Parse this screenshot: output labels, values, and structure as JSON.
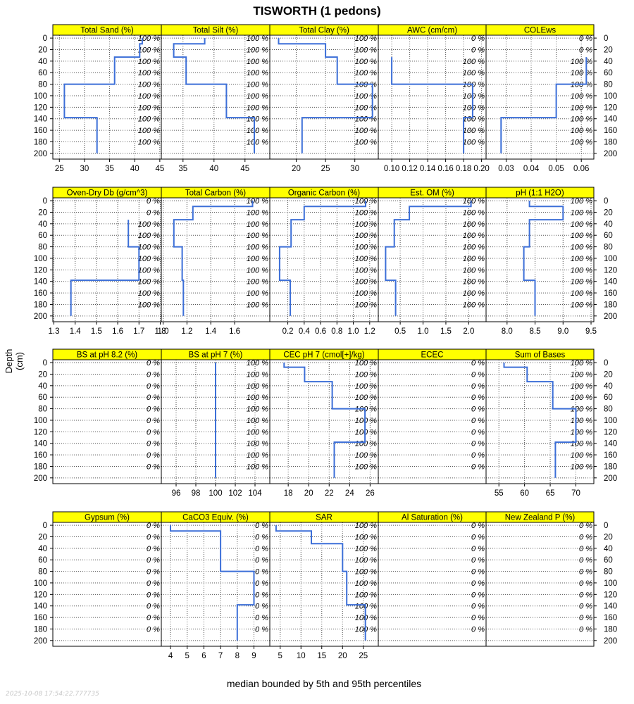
{
  "title": "TISWORTH (1 pedons)",
  "ylabel": "Depth (cm)",
  "xlabel": "median bounded by 5th and 95th percentiles",
  "timestamp": "2025-10-08 17:54:22.777735",
  "colors": {
    "strip": "#ffff00",
    "line": "#3c6fd8",
    "grid": "#555555"
  },
  "chart_data": {
    "type": "line",
    "ylim": [
      210,
      -5
    ],
    "y_ticks": [
      0,
      20,
      40,
      60,
      80,
      100,
      120,
      140,
      160,
      180,
      200
    ],
    "y_ticks_left_panel": [
      0,
      20,
      40,
      60,
      80,
      100,
      120,
      140,
      160,
      180,
      200
    ],
    "pct_depths": [
      0,
      20,
      40,
      60,
      80,
      100,
      120,
      140,
      160,
      180
    ],
    "panels": [
      {
        "name": "Total Sand (%)",
        "xlim": [
          23.7,
          45.3
        ],
        "ticks": [
          "25",
          "30",
          "35",
          "40",
          "45"
        ],
        "tick_values": [
          25,
          30,
          35,
          40,
          45
        ],
        "pct": [
          "100 %",
          "100 %",
          "100 %",
          "100 %",
          "100 %",
          "100 %",
          "100 %",
          "100 %",
          "100 %",
          "100 %"
        ],
        "profile": [
          [
            41.5,
            0
          ],
          [
            41.5,
            10
          ],
          [
            41,
            10
          ],
          [
            41,
            33
          ],
          [
            36,
            33
          ],
          [
            36,
            80
          ],
          [
            26,
            80
          ],
          [
            26,
            138
          ],
          [
            32.5,
            138
          ],
          [
            32.5,
            200
          ]
        ]
      },
      {
        "name": "Total Silt (%)",
        "xlim": [
          31.5,
          49
        ],
        "ticks": [
          "35",
          "40",
          "45"
        ],
        "tick_values": [
          35,
          40,
          45
        ],
        "pct": [
          "100 %",
          "100 %",
          "100 %",
          "100 %",
          "100 %",
          "100 %",
          "100 %",
          "100 %",
          "100 %",
          "100 %"
        ],
        "profile": [
          [
            38.5,
            0
          ],
          [
            38.5,
            10
          ],
          [
            33.5,
            10
          ],
          [
            33.5,
            33
          ],
          [
            35.5,
            33
          ],
          [
            35.5,
            80
          ],
          [
            42,
            80
          ],
          [
            42,
            138
          ],
          [
            46.5,
            138
          ],
          [
            46.5,
            200
          ]
        ]
      },
      {
        "name": "Total Clay (%)",
        "xlim": [
          15.5,
          34
        ],
        "ticks": [
          "20",
          "25",
          "30"
        ],
        "tick_values": [
          20,
          25,
          30
        ],
        "pct": [
          "100 %",
          "100 %",
          "100 %",
          "100 %",
          "100 %",
          "100 %",
          "100 %",
          "100 %",
          "100 %",
          "100 %"
        ],
        "profile": [
          [
            17,
            0
          ],
          [
            17,
            10
          ],
          [
            25,
            10
          ],
          [
            25,
            33
          ],
          [
            27,
            33
          ],
          [
            27,
            80
          ],
          [
            33,
            80
          ],
          [
            33,
            138
          ],
          [
            21,
            138
          ],
          [
            21,
            200
          ]
        ]
      },
      {
        "name": "AWC (cm/cm)",
        "xlim": [
          0.085,
          0.205
        ],
        "ticks": [
          "0.10",
          "0.12",
          "0.14",
          "0.16",
          "0.18",
          "0.20"
        ],
        "tick_values": [
          0.1,
          0.12,
          0.14,
          0.16,
          0.18,
          0.2
        ],
        "pct": [
          "0 %",
          "0 %",
          "100 %",
          "100 %",
          "100 %",
          "100 %",
          "100 %",
          "100 %",
          "100 %",
          "100 %"
        ],
        "profile": [
          [
            0.1,
            33
          ],
          [
            0.1,
            80
          ],
          [
            0.19,
            80
          ],
          [
            0.19,
            138
          ],
          [
            0.18,
            138
          ],
          [
            0.18,
            200
          ]
        ]
      },
      {
        "name": "COLEws",
        "xlim": [
          0.022,
          0.065
        ],
        "ticks": [
          "0.03",
          "0.04",
          "0.05",
          "0.06"
        ],
        "tick_values": [
          0.03,
          0.04,
          0.05,
          0.06
        ],
        "pct": [
          "0 %",
          "0 %",
          "100 %",
          "100 %",
          "100 %",
          "100 %",
          "100 %",
          "100 %",
          "100 %",
          "100 %"
        ],
        "profile": [
          [
            0.062,
            33
          ],
          [
            0.062,
            80
          ],
          [
            0.05,
            80
          ],
          [
            0.05,
            138
          ],
          [
            0.028,
            138
          ],
          [
            0.028,
            200
          ]
        ]
      },
      {
        "name": "Oven-Dry Db (g/cm^3)",
        "xlim": [
          1.295,
          1.805
        ],
        "ticks": [
          "1.3",
          "1.4",
          "1.5",
          "1.6",
          "1.7",
          "1.8"
        ],
        "tick_values": [
          1.3,
          1.4,
          1.5,
          1.6,
          1.7,
          1.8
        ],
        "pct": [
          "0 %",
          "0 %",
          "100 %",
          "100 %",
          "100 %",
          "100 %",
          "100 %",
          "100 %",
          "100 %",
          "100 %"
        ],
        "profile": [
          [
            1.65,
            33
          ],
          [
            1.65,
            80
          ],
          [
            1.7,
            80
          ],
          [
            1.7,
            138
          ],
          [
            1.38,
            138
          ],
          [
            1.38,
            200
          ]
        ]
      },
      {
        "name": "Total Carbon (%)",
        "xlim": [
          0.985,
          1.895
        ],
        "ticks": [
          "1.0",
          "1.2",
          "1.4",
          "1.6"
        ],
        "tick_values": [
          1.0,
          1.2,
          1.4,
          1.6
        ],
        "pct": [
          "100 %",
          "100 %",
          "100 %",
          "100 %",
          "100 %",
          "100 %",
          "100 %",
          "100 %",
          "100 %",
          "100 %"
        ],
        "profile": [
          [
            1.75,
            0
          ],
          [
            1.75,
            10
          ],
          [
            1.25,
            10
          ],
          [
            1.25,
            33
          ],
          [
            1.09,
            33
          ],
          [
            1.09,
            80
          ],
          [
            1.16,
            80
          ],
          [
            1.16,
            138
          ],
          [
            1.17,
            138
          ],
          [
            1.17,
            200
          ]
        ]
      },
      {
        "name": "Organic Carbon (%)",
        "xlim": [
          -0.02,
          1.305
        ],
        "ticks": [
          "0.2",
          "0.4",
          "0.6",
          "0.8",
          "1.0",
          "1.2"
        ],
        "tick_values": [
          0.2,
          0.4,
          0.6,
          0.8,
          1.0,
          1.2
        ],
        "pct": [
          "100 %",
          "100 %",
          "100 %",
          "100 %",
          "100 %",
          "100 %",
          "100 %",
          "100 %",
          "100 %",
          "100 %"
        ],
        "profile": [
          [
            1.15,
            0
          ],
          [
            1.15,
            10
          ],
          [
            0.4,
            10
          ],
          [
            0.4,
            33
          ],
          [
            0.24,
            33
          ],
          [
            0.24,
            80
          ],
          [
            0.1,
            80
          ],
          [
            0.1,
            138
          ],
          [
            0.23,
            138
          ],
          [
            0.23,
            200
          ]
        ]
      },
      {
        "name": "Est. OM (%)",
        "xlim": [
          0.02,
          2.38
        ],
        "ticks": [
          "0.5",
          "1.0",
          "1.5",
          "2.0"
        ],
        "tick_values": [
          0.5,
          1.0,
          1.5,
          2.0
        ],
        "pct": [
          "100 %",
          "100 %",
          "100 %",
          "100 %",
          "100 %",
          "100 %",
          "100 %",
          "100 %",
          "100 %",
          "100 %"
        ],
        "profile": [
          [
            2.05,
            0
          ],
          [
            2.05,
            10
          ],
          [
            0.7,
            10
          ],
          [
            0.7,
            33
          ],
          [
            0.37,
            33
          ],
          [
            0.37,
            80
          ],
          [
            0.18,
            80
          ],
          [
            0.18,
            138
          ],
          [
            0.4,
            138
          ],
          [
            0.4,
            200
          ]
        ]
      },
      {
        "name": "pH (1:1 H2O)",
        "xlim": [
          7.625,
          9.55
        ],
        "ticks": [
          "8.0",
          "8.5",
          "9.0",
          "9.5"
        ],
        "tick_values": [
          8.0,
          8.5,
          9.0,
          9.5
        ],
        "pct": [
          "100 %",
          "100 %",
          "100 %",
          "100 %",
          "100 %",
          "100 %",
          "100 %",
          "100 %",
          "100 %",
          "100 %"
        ],
        "profile": [
          [
            8.4,
            0
          ],
          [
            8.4,
            10
          ],
          [
            9.0,
            10
          ],
          [
            9.0,
            33
          ],
          [
            8.4,
            33
          ],
          [
            8.4,
            80
          ],
          [
            8.3,
            80
          ],
          [
            8.3,
            138
          ],
          [
            8.5,
            138
          ],
          [
            8.5,
            200
          ]
        ]
      },
      {
        "name": "BS at pH 8.2 (%)",
        "xlim": [
          0,
          1
        ],
        "ticks": [],
        "tick_values": [],
        "pct": [
          "0 %",
          "0 %",
          "0 %",
          "0 %",
          "0 %",
          "0 %",
          "0 %",
          "0 %",
          "0 %",
          "0 %"
        ],
        "profile": []
      },
      {
        "name": "BS at pH 7 (%)",
        "xlim": [
          94.5,
          105.5
        ],
        "ticks": [
          "96",
          "98",
          "100",
          "102",
          "104"
        ],
        "tick_values": [
          96,
          98,
          100,
          102,
          104
        ],
        "pct": [
          "100 %",
          "100 %",
          "100 %",
          "100 %",
          "100 %",
          "100 %",
          "100 %",
          "100 %",
          "100 %",
          "100 %"
        ],
        "profile": [
          [
            100,
            0
          ],
          [
            100,
            200
          ]
        ]
      },
      {
        "name": "CEC pH 7 (cmol[+]/kg)",
        "xlim": [
          16.2,
          26.8
        ],
        "ticks": [
          "18",
          "20",
          "22",
          "24",
          "26"
        ],
        "tick_values": [
          18,
          20,
          22,
          24,
          26
        ],
        "pct": [
          "100 %",
          "100 %",
          "100 %",
          "100 %",
          "100 %",
          "100 %",
          "100 %",
          "100 %",
          "100 %",
          "100 %"
        ],
        "profile": [
          [
            17.6,
            0
          ],
          [
            17.6,
            8
          ],
          [
            19.6,
            8
          ],
          [
            19.6,
            33
          ],
          [
            22.3,
            33
          ],
          [
            22.3,
            80
          ],
          [
            25.5,
            80
          ],
          [
            25.5,
            138
          ],
          [
            22.5,
            138
          ],
          [
            22.5,
            200
          ]
        ]
      },
      {
        "name": "ECEC",
        "xlim": [
          0,
          1
        ],
        "ticks": [],
        "tick_values": [],
        "pct": [
          "0 %",
          "0 %",
          "0 %",
          "0 %",
          "0 %",
          "0 %",
          "0 %",
          "0 %",
          "0 %",
          "0 %"
        ],
        "profile": []
      },
      {
        "name": "Sum of Bases",
        "xlim": [
          52.5,
          73.5
        ],
        "ticks": [
          "55",
          "60",
          "65",
          "70"
        ],
        "tick_values": [
          55,
          60,
          65,
          70
        ],
        "pct": [
          "100 %",
          "100 %",
          "100 %",
          "100 %",
          "100 %",
          "100 %",
          "100 %",
          "100 %",
          "100 %",
          "100 %"
        ],
        "profile": [
          [
            56,
            0
          ],
          [
            56,
            8
          ],
          [
            60.5,
            8
          ],
          [
            60.5,
            33
          ],
          [
            65.5,
            33
          ],
          [
            65.5,
            80
          ],
          [
            70,
            80
          ],
          [
            70,
            138
          ],
          [
            66,
            138
          ],
          [
            66,
            200
          ]
        ]
      },
      {
        "name": "Gypsum (%)",
        "xlim": [
          0,
          1
        ],
        "ticks": [],
        "tick_values": [],
        "pct": [
          "0 %",
          "0 %",
          "0 %",
          "0 %",
          "0 %",
          "0 %",
          "0 %",
          "0 %",
          "0 %",
          "0 %"
        ],
        "profile": []
      },
      {
        "name": "CaCO3 Equiv. (%)",
        "xlim": [
          3.45,
          9.95
        ],
        "ticks": [
          "4",
          "5",
          "6",
          "7",
          "8",
          "9"
        ],
        "tick_values": [
          4,
          5,
          6,
          7,
          8,
          9
        ],
        "pct": [
          "0 %",
          "0 %",
          "0 %",
          "0 %",
          "0 %",
          "0 %",
          "0 %",
          "0 %",
          "0 %",
          "0 %"
        ],
        "profile": [
          [
            4,
            0
          ],
          [
            4,
            10
          ],
          [
            7,
            10
          ],
          [
            7,
            80
          ],
          [
            9,
            80
          ],
          [
            9,
            138
          ],
          [
            8,
            138
          ],
          [
            8,
            200
          ]
        ]
      },
      {
        "name": "SAR",
        "xlim": [
          2.5,
          28.6
        ],
        "ticks": [
          "5",
          "10",
          "15",
          "20",
          "25"
        ],
        "tick_values": [
          5,
          10,
          15,
          20,
          25
        ],
        "pct": [
          "100 %",
          "100 %",
          "100 %",
          "100 %",
          "100 %",
          "100 %",
          "100 %",
          "100 %",
          "100 %",
          "100 %"
        ],
        "profile": [
          [
            4,
            0
          ],
          [
            4,
            10
          ],
          [
            12.5,
            10
          ],
          [
            12.5,
            32
          ],
          [
            20,
            32
          ],
          [
            20,
            80
          ],
          [
            21,
            80
          ],
          [
            21,
            138
          ],
          [
            25.5,
            138
          ],
          [
            25.5,
            200
          ]
        ]
      },
      {
        "name": "Al Saturation (%)",
        "xlim": [
          0,
          1
        ],
        "ticks": [],
        "tick_values": [],
        "pct": [
          "0 %",
          "0 %",
          "0 %",
          "0 %",
          "0 %",
          "0 %",
          "0 %",
          "0 %",
          "0 %",
          "0 %"
        ],
        "profile": []
      },
      {
        "name": "New Zealand P (%)",
        "xlim": [
          0,
          1
        ],
        "ticks": [],
        "tick_values": [],
        "pct": [
          "0 %",
          "0 %",
          "0 %",
          "0 %",
          "0 %",
          "0 %",
          "0 %",
          "0 %",
          "0 %",
          "0 %"
        ],
        "profile": []
      }
    ]
  }
}
